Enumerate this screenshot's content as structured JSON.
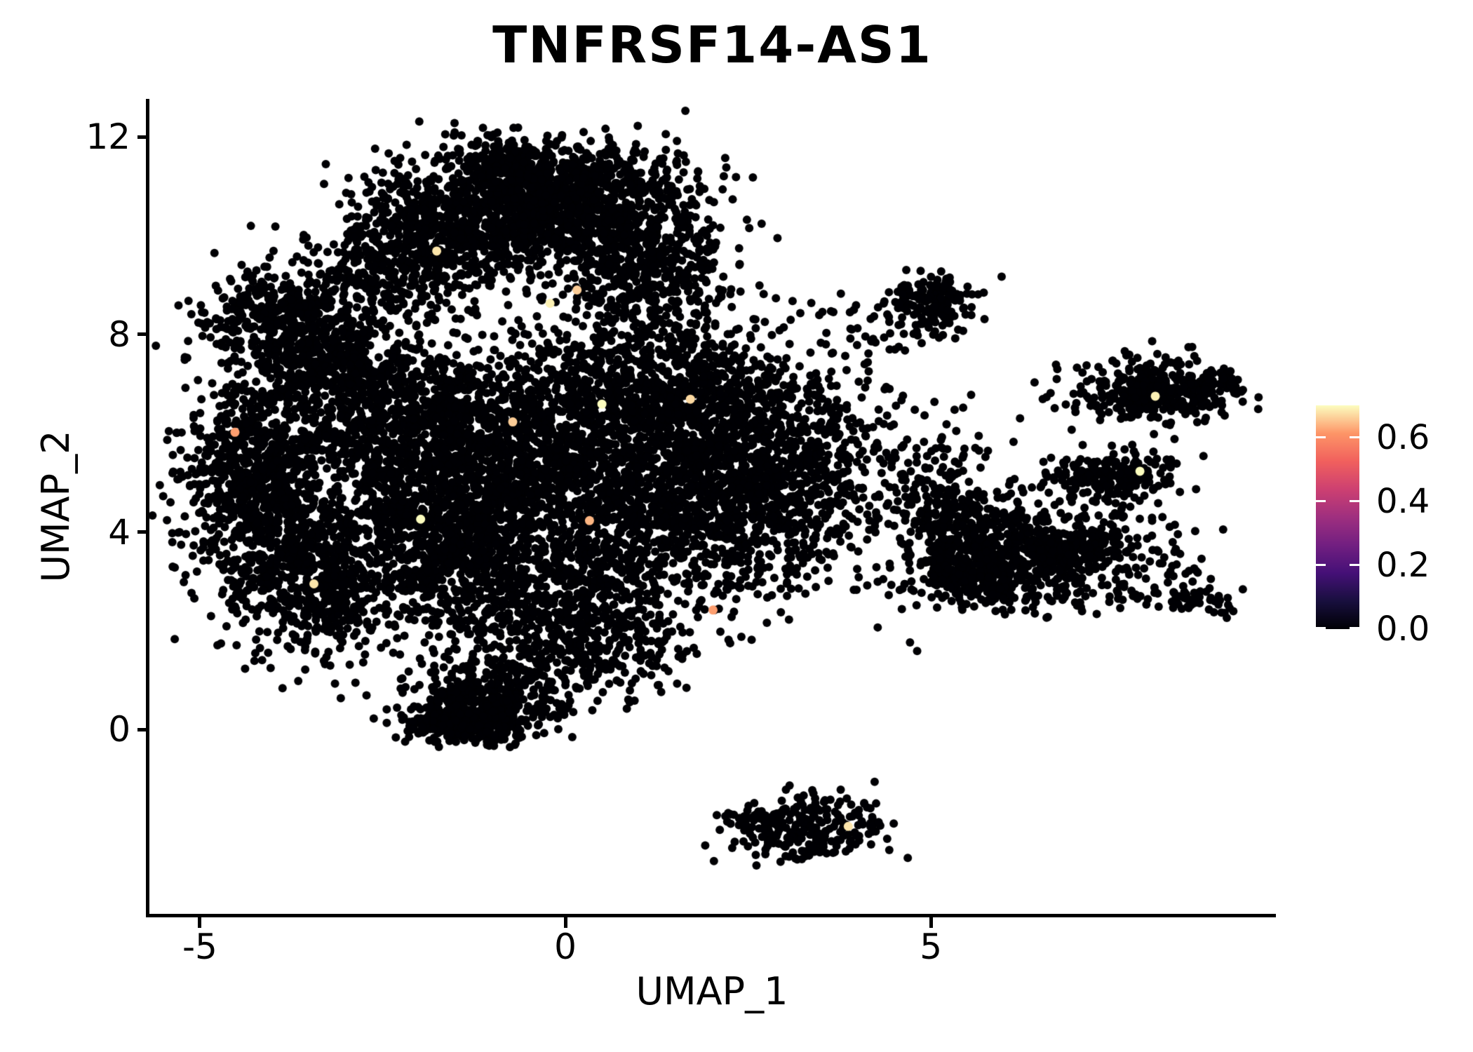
{
  "chart_data": {
    "type": "scatter",
    "title": "TNFRSF14-AS1",
    "xlabel": "UMAP_1",
    "ylabel": "UMAP_2",
    "xlim": [
      -5.7,
      9.72
    ],
    "ylim": [
      -3.76,
      12.77
    ],
    "grid": false,
    "x_ticks": [
      {
        "label": "-5",
        "value": -5
      },
      {
        "label": "0",
        "value": 0
      },
      {
        "label": "5",
        "value": 5
      }
    ],
    "y_ticks": [
      {
        "label": "12",
        "value": 12
      },
      {
        "label": "8",
        "value": 8
      },
      {
        "label": "4",
        "value": 4
      },
      {
        "label": "0",
        "value": 0
      }
    ],
    "point_radius_px": 6,
    "point_color": "#000004",
    "seed": 7,
    "colorbar": {
      "position": "right",
      "vmin": 0.0,
      "vmax": 0.7,
      "colormap": "magma",
      "stops": [
        "#000004",
        "#180f3e",
        "#451077",
        "#721f81",
        "#9f2f7f",
        "#cd4071",
        "#f1605d",
        "#fd9567",
        "#fcfdbf"
      ],
      "ticks": [
        {
          "label": "0.6",
          "value": 0.6
        },
        {
          "label": "0.4",
          "value": 0.4
        },
        {
          "label": "0.2",
          "value": 0.2
        },
        {
          "label": "0.0",
          "value": 0.0
        }
      ]
    },
    "clusters": [
      {
        "x": -1.35,
        "y": 10.35,
        "sx": 0.75,
        "sy": 0.6,
        "n": 650
      },
      {
        "x": 0.2,
        "y": 10.5,
        "sx": 0.8,
        "sy": 0.6,
        "n": 750
      },
      {
        "x": 0.0,
        "y": 11.15,
        "sx": 0.9,
        "sy": 0.33,
        "n": 300
      },
      {
        "x": -0.9,
        "y": 11.55,
        "sx": 0.5,
        "sy": 0.28,
        "n": 140
      },
      {
        "x": 1.15,
        "y": 9.3,
        "sx": 0.55,
        "sy": 0.7,
        "n": 420
      },
      {
        "x": -2.3,
        "y": 9.35,
        "sx": 0.6,
        "sy": 0.55,
        "n": 350
      },
      {
        "x": -3.9,
        "y": 8.35,
        "sx": 0.55,
        "sy": 0.55,
        "n": 360
      },
      {
        "x": -3.25,
        "y": 7.3,
        "sx": 0.6,
        "sy": 0.6,
        "n": 400
      },
      {
        "x": -4.2,
        "y": 5.55,
        "sx": 0.5,
        "sy": 0.65,
        "n": 480
      },
      {
        "x": -4.0,
        "y": 4.1,
        "sx": 0.55,
        "sy": 0.85,
        "n": 520
      },
      {
        "x": -3.3,
        "y": 2.75,
        "sx": 0.65,
        "sy": 0.75,
        "n": 430
      },
      {
        "x": -2.0,
        "y": 6.3,
        "sx": 0.85,
        "sy": 0.85,
        "n": 800
      },
      {
        "x": -0.4,
        "y": 5.6,
        "sx": 1.05,
        "sy": 0.95,
        "n": 950
      },
      {
        "x": -1.9,
        "y": 4.3,
        "sx": 0.85,
        "sy": 0.85,
        "n": 700
      },
      {
        "x": -0.7,
        "y": 3.0,
        "sx": 0.95,
        "sy": 0.8,
        "n": 700
      },
      {
        "x": 0.9,
        "y": 7.0,
        "sx": 0.8,
        "sy": 0.8,
        "n": 600
      },
      {
        "x": 1.0,
        "y": 4.4,
        "sx": 0.9,
        "sy": 0.95,
        "n": 650
      },
      {
        "x": 0.3,
        "y": 1.75,
        "sx": 0.7,
        "sy": 0.55,
        "n": 330
      },
      {
        "x": -1.0,
        "y": 0.65,
        "sx": 0.55,
        "sy": 0.42,
        "n": 340
      },
      {
        "x": -1.35,
        "y": 0.12,
        "sx": 0.4,
        "sy": 0.2,
        "n": 240
      },
      {
        "x": 2.2,
        "y": 6.3,
        "sx": 0.7,
        "sy": 0.9,
        "n": 550
      },
      {
        "x": 2.5,
        "y": 4.4,
        "sx": 0.75,
        "sy": 0.95,
        "n": 550
      },
      {
        "x": 3.3,
        "y": 5.4,
        "sx": 0.6,
        "sy": 0.85,
        "n": 320
      },
      {
        "x": 3.3,
        "y": 8.4,
        "sx": 0.8,
        "sy": 0.3,
        "n": 18
      },
      {
        "x": 5.05,
        "y": 8.65,
        "sx": 0.3,
        "sy": 0.27,
        "n": 170
      },
      {
        "x": 4.45,
        "y": 8.15,
        "sx": 0.35,
        "sy": 0.35,
        "n": 30
      },
      {
        "x": 4.9,
        "y": 4.7,
        "sx": 0.55,
        "sy": 1.05,
        "n": 200
      },
      {
        "x": 8.0,
        "y": 6.85,
        "sx": 0.48,
        "sy": 0.32,
        "n": 380
      },
      {
        "x": 8.85,
        "y": 6.95,
        "sx": 0.22,
        "sy": 0.16,
        "n": 60
      },
      {
        "x": 7.5,
        "y": 5.15,
        "sx": 0.4,
        "sy": 0.28,
        "n": 220
      },
      {
        "x": 6.6,
        "y": 3.5,
        "sx": 0.85,
        "sy": 0.5,
        "n": 620
      },
      {
        "x": 5.65,
        "y": 3.15,
        "sx": 0.45,
        "sy": 0.33,
        "n": 220
      },
      {
        "x": 5.6,
        "y": 4.2,
        "sx": 0.5,
        "sy": 0.55,
        "n": 150
      },
      {
        "x": 8.6,
        "y": 2.65,
        "sx": 0.3,
        "sy": 0.12,
        "n": 50
      },
      {
        "x": 9.05,
        "y": 2.4,
        "sx": 0.12,
        "sy": 0.08,
        "n": 6
      },
      {
        "x": 3.35,
        "y": -2.0,
        "sx": 0.5,
        "sy": 0.35,
        "n": 240
      },
      {
        "x": 2.55,
        "y": -1.8,
        "sx": 0.3,
        "sy": 0.1,
        "n": 40
      }
    ],
    "highlight_points": [
      {
        "x": -1.76,
        "y": 9.69,
        "value": 0.68
      },
      {
        "x": 0.16,
        "y": 8.9,
        "value": 0.66
      },
      {
        "x": -0.21,
        "y": 8.63,
        "value": 0.69
      },
      {
        "x": 0.5,
        "y": 6.59,
        "value": 0.7
      },
      {
        "x": -0.72,
        "y": 6.23,
        "value": 0.66
      },
      {
        "x": 1.71,
        "y": 6.69,
        "value": 0.67
      },
      {
        "x": -3.44,
        "y": 2.95,
        "value": 0.68
      },
      {
        "x": -1.98,
        "y": 4.26,
        "value": 0.7
      },
      {
        "x": 8.07,
        "y": 6.75,
        "value": 0.69
      },
      {
        "x": 7.86,
        "y": 5.23,
        "value": 0.7
      },
      {
        "x": 3.87,
        "y": -1.96,
        "value": 0.68
      },
      {
        "x": -4.52,
        "y": 6.02,
        "value": 0.62
      },
      {
        "x": 0.33,
        "y": 4.23,
        "value": 0.64
      },
      {
        "x": 2.02,
        "y": 2.42,
        "value": 0.62
      }
    ]
  }
}
